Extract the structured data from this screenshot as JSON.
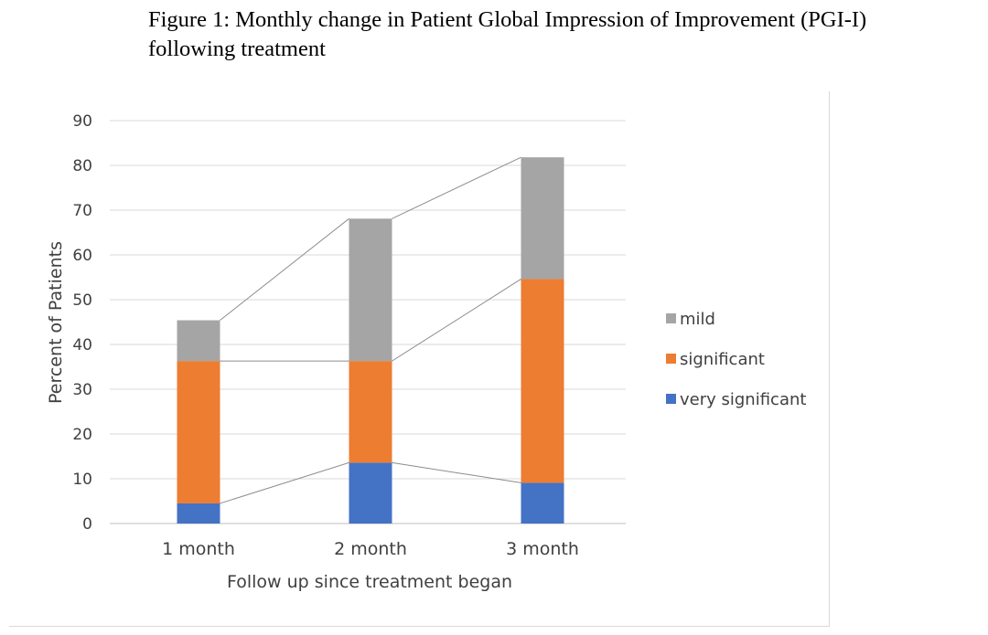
{
  "figure": {
    "title_line1": "Figure 1: Monthly change in Patient Global Impression of Improvement (PGI-I)",
    "title_line2": "following treatment"
  },
  "chart_data": {
    "type": "bar",
    "stacked": true,
    "categories": [
      "1 month",
      "2 month",
      "3 month"
    ],
    "series": [
      {
        "name": "very significant",
        "color": "#4472c4",
        "values": [
          4.5,
          13.6,
          9.1
        ]
      },
      {
        "name": "significant",
        "color": "#ed7d31",
        "values": [
          31.8,
          22.7,
          45.5
        ]
      },
      {
        "name": "mild",
        "color": "#a5a5a5",
        "values": [
          9.1,
          31.8,
          27.2
        ]
      }
    ],
    "xlabel": "Follow up since treatment began",
    "ylabel": "Percent of Patients",
    "ylim": [
      0,
      90
    ],
    "yticks": [
      0,
      10,
      20,
      30,
      40,
      50,
      60,
      70,
      80,
      90
    ],
    "grid": true,
    "series_lines": true,
    "legend": {
      "position": "right",
      "order": [
        "mild",
        "significant",
        "very significant"
      ]
    }
  }
}
